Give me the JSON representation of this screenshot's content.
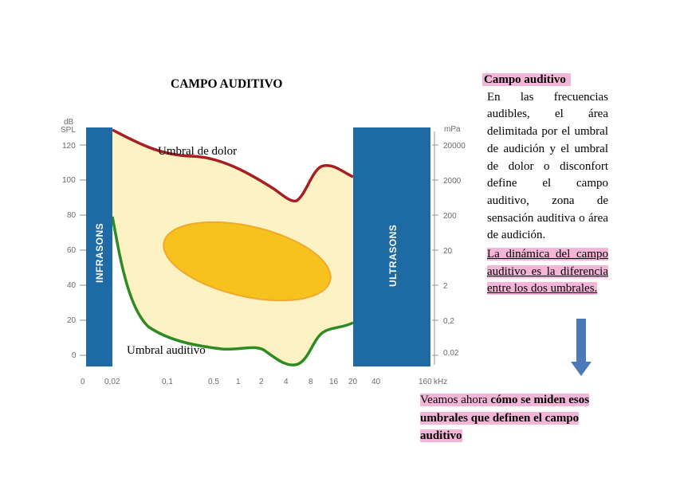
{
  "slide": {
    "title": "CAMPO AUDITIVO"
  },
  "figure": {
    "left_axis_unit_top": "dB",
    "left_axis_unit_bottom": "SPL",
    "right_axis_unit": "mPa",
    "x_unit": "kHz",
    "left_ticks": [
      "120",
      "100",
      "80",
      "60",
      "40",
      "20",
      "0"
    ],
    "right_ticks": [
      "20000",
      "2000",
      "200",
      "20",
      "2",
      "0,2",
      "0,02"
    ],
    "x_ticks": [
      "0",
      "0,02",
      "0,1",
      "0,5",
      "1",
      "2",
      "4",
      "8",
      "16",
      "20",
      "40",
      "160"
    ],
    "band_left": "INFRASONS",
    "band_right": "ULTRASONS",
    "label_pain": "Umbral de dolor",
    "label_hearing": "Umbral auditivo",
    "colors": {
      "band": "#1e6aa4",
      "field": "#fdf2c4",
      "pain_curve": "#a61f23",
      "hearing_curve": "#2e8b22",
      "speech_zone": "#f7c11e",
      "speech_zone_edge": "#f0a92c"
    }
  },
  "side_text": {
    "heading": "Campo auditivo",
    "body": "En las frecuencias audibles, el área delimitada por el umbral de audición y el umbral de dolor o disconfort define el campo auditivo, zona de sensación auditiva o área de audición.",
    "dynamic": "La dinámica del campo auditivo es la diferencia entre los dos umbrales."
  },
  "bottom_note": {
    "lead": "Veamos ahora ",
    "bold": "cómo se miden esos umbrales que definen el campo auditivo"
  },
  "arrow": {
    "color": "#4a78b8",
    "direction": "down"
  }
}
